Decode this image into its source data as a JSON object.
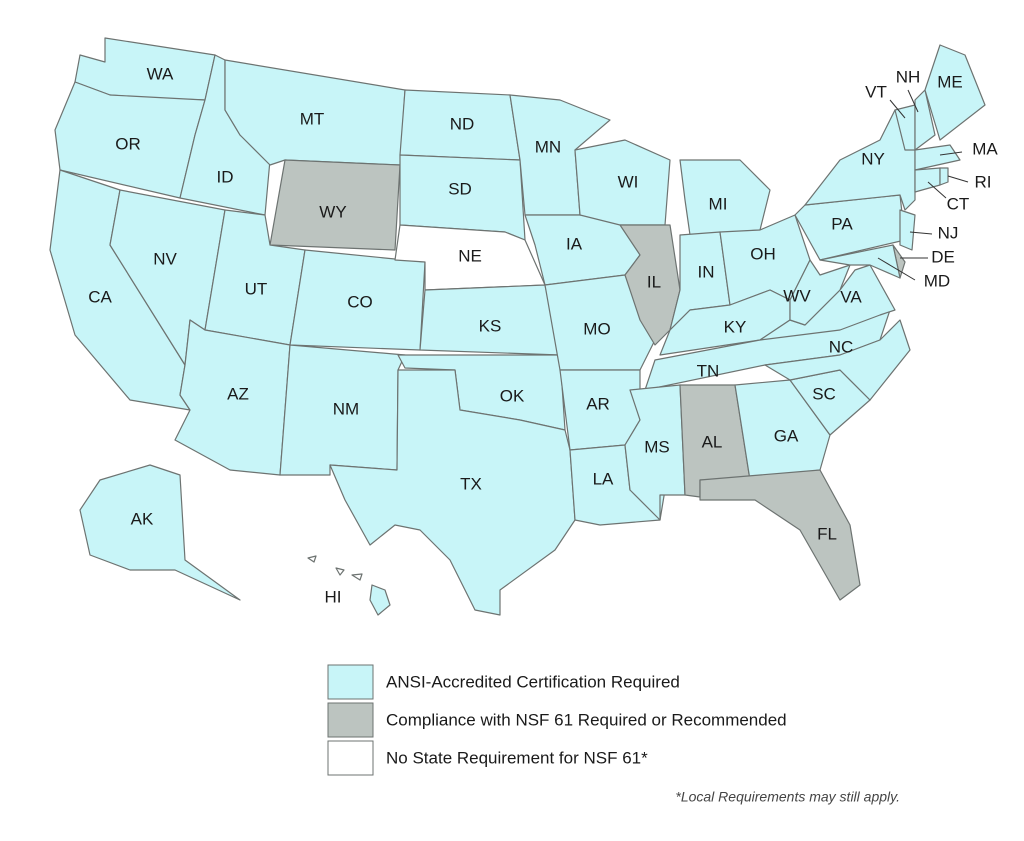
{
  "legend": [
    {
      "label": "ANSI-Accredited Certification Required",
      "color": "#c8f5f8"
    },
    {
      "label": "Compliance with NSF 61 Required or Recommended",
      "color": "#bcc4c0"
    },
    {
      "label": "No State Requirement for NSF 61*",
      "color": "#ffffff"
    }
  ],
  "note": "*Local Requirements may still apply.",
  "states": [
    {
      "label": "WA",
      "category": 0
    },
    {
      "label": "OR",
      "category": 0
    },
    {
      "label": "CA",
      "category": 0
    },
    {
      "label": "NV",
      "category": 0
    },
    {
      "label": "ID",
      "category": 0
    },
    {
      "label": "MT",
      "category": 0
    },
    {
      "label": "WY",
      "category": 1
    },
    {
      "label": "UT",
      "category": 0
    },
    {
      "label": "CO",
      "category": 0
    },
    {
      "label": "AZ",
      "category": 0
    },
    {
      "label": "NM",
      "category": 0
    },
    {
      "label": "ND",
      "category": 0
    },
    {
      "label": "SD",
      "category": 0
    },
    {
      "label": "NE",
      "category": 2
    },
    {
      "label": "KS",
      "category": 0
    },
    {
      "label": "OK",
      "category": 0
    },
    {
      "label": "TX",
      "category": 0
    },
    {
      "label": "MN",
      "category": 0
    },
    {
      "label": "IA",
      "category": 0
    },
    {
      "label": "MO",
      "category": 0
    },
    {
      "label": "AR",
      "category": 0
    },
    {
      "label": "LA",
      "category": 0
    },
    {
      "label": "WI",
      "category": 0
    },
    {
      "label": "IL",
      "category": 1
    },
    {
      "label": "MI",
      "category": 0
    },
    {
      "label": "IN",
      "category": 0
    },
    {
      "label": "OH",
      "category": 0
    },
    {
      "label": "KY",
      "category": 0
    },
    {
      "label": "TN",
      "category": 0
    },
    {
      "label": "MS",
      "category": 0
    },
    {
      "label": "AL",
      "category": 1
    },
    {
      "label": "GA",
      "category": 0
    },
    {
      "label": "FL",
      "category": 1
    },
    {
      "label": "SC",
      "category": 0
    },
    {
      "label": "NC",
      "category": 0
    },
    {
      "label": "VA",
      "category": 0
    },
    {
      "label": "WV",
      "category": 0
    },
    {
      "label": "PA",
      "category": 0
    },
    {
      "label": "NY",
      "category": 0
    },
    {
      "label": "VT",
      "category": 0
    },
    {
      "label": "NH",
      "category": 0
    },
    {
      "label": "ME",
      "category": 0
    },
    {
      "label": "MA",
      "category": 0
    },
    {
      "label": "CT",
      "category": 0
    },
    {
      "label": "RI",
      "category": 0
    },
    {
      "label": "NJ",
      "category": 0
    },
    {
      "label": "DE",
      "category": 1
    },
    {
      "label": "MD",
      "category": 0
    },
    {
      "label": "AK",
      "category": 0
    },
    {
      "label": "HI",
      "category": 0
    }
  ]
}
